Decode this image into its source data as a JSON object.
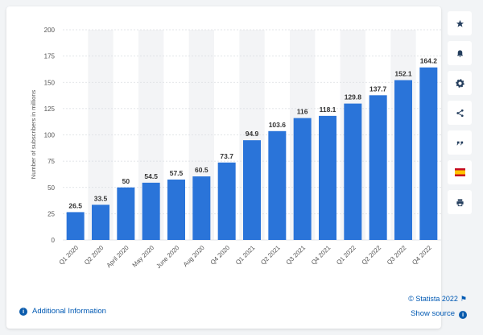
{
  "chart_data": {
    "type": "bar",
    "title": "",
    "xlabel": "",
    "ylabel": "Number of subscribers in millions",
    "categories": [
      "Q1 2020",
      "Q2 2020",
      "April 2020",
      "May 2020",
      "June 2020",
      "Aug 2020",
      "Q4 2020",
      "Q1 2021",
      "Q2 2021",
      "Q3 2021",
      "Q4 2021",
      "Q1 2022",
      "Q2 2022",
      "Q3 2022",
      "Q4 2022"
    ],
    "values": [
      26.5,
      33.5,
      50,
      54.5,
      57.5,
      60.5,
      73.7,
      94.9,
      103.6,
      116,
      118.1,
      129.8,
      137.7,
      152.1,
      164.2
    ],
    "value_labels": [
      "26.5",
      "33.5",
      "50",
      "54.5",
      "57.5",
      "60.5",
      "73.7",
      "94.9",
      "103.6",
      "116",
      "118.1",
      "129.8",
      "137.7",
      "152.1",
      "164.2"
    ],
    "yticks": [
      0,
      25,
      50,
      75,
      100,
      125,
      150,
      175,
      200
    ],
    "ylim": [
      0,
      200
    ],
    "grid": true,
    "colors": {
      "bar": "#2a74d9",
      "band": "#f3f4f6",
      "grid": "#dadde1",
      "text": "#333333",
      "axis_text": "#555555"
    }
  },
  "footer": {
    "credit": "© Statista 2022",
    "show_source": "Show source",
    "additional_info": "Additional Information"
  },
  "sidebar": {
    "buttons": [
      {
        "name": "favorite-button",
        "icon": "star-icon"
      },
      {
        "name": "notification-button",
        "icon": "bell-icon"
      },
      {
        "name": "settings-button",
        "icon": "gear-icon"
      },
      {
        "name": "share-button",
        "icon": "share-icon"
      },
      {
        "name": "cite-button",
        "icon": "quote-icon"
      },
      {
        "name": "language-button",
        "icon": "spain-flag-icon"
      },
      {
        "name": "print-button",
        "icon": "printer-icon"
      }
    ]
  }
}
